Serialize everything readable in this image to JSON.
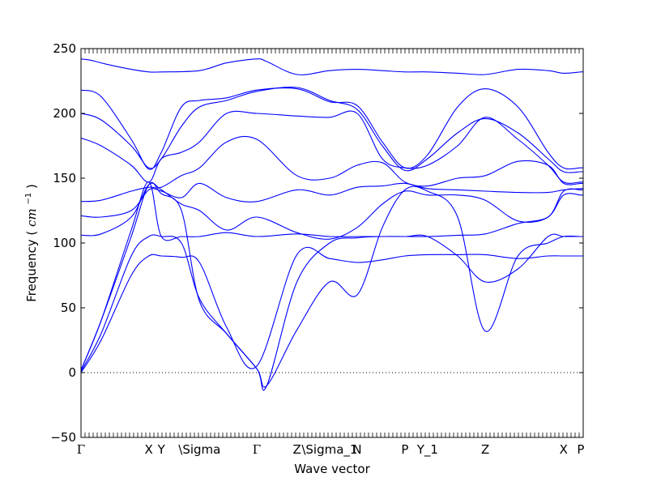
{
  "chart_data": {
    "type": "line",
    "title": "",
    "xlabel": "Wave vector",
    "ylabel": "Frequency",
    "ylabel_unit": "cm",
    "ylabel_unit_exp": "−1",
    "ylim": [
      -50,
      250
    ],
    "yticks": [
      -50,
      0,
      50,
      100,
      150,
      200,
      250
    ],
    "xlim": [
      0,
      1.0
    ],
    "zero_line": true,
    "grid": false,
    "legend": "none",
    "line_color": "#0000ff",
    "high_symmetry_points": [
      {
        "label": "Γ",
        "x": 0.0
      },
      {
        "label": "X",
        "x": 0.135
      },
      {
        "label": "Y",
        "x": 0.16
      },
      {
        "label": "\\Sigma",
        "x": 0.236
      },
      {
        "label": "Γ",
        "x": 0.35
      },
      {
        "label": "Z",
        "x": 0.43
      },
      {
        "label": "\\Sigma_1",
        "x": 0.495
      },
      {
        "label": "N",
        "x": 0.55
      },
      {
        "label": "P",
        "x": 0.645
      },
      {
        "label": "Y_1",
        "x": 0.69
      },
      {
        "label": "Z",
        "x": 0.805
      },
      {
        "label": "X",
        "x": 0.961
      },
      {
        "label": "P",
        "x": 0.995
      }
    ],
    "series": [
      {
        "x": [
          0,
          0.02,
          0.05,
          0.1,
          0.135,
          0.16,
          0.236,
          0.29,
          0.35,
          0.37,
          0.43,
          0.495,
          0.55,
          0.6,
          0.645,
          0.69,
          0.75,
          0.805,
          0.87,
          0.93,
          0.961,
          0.995,
          1.0
        ],
        "values": [
          242,
          241,
          238,
          234,
          232,
          232,
          233,
          239,
          242,
          240,
          230,
          233,
          234,
          233,
          232,
          232,
          231,
          230,
          234,
          233,
          231,
          232,
          232
        ]
      },
      {
        "x": [
          0,
          0.04,
          0.1,
          0.135,
          0.16,
          0.2,
          0.236,
          0.29,
          0.35,
          0.43,
          0.495,
          0.55,
          0.6,
          0.645,
          0.69,
          0.75,
          0.805,
          0.87,
          0.93,
          0.961,
          0.995,
          1.0
        ],
        "values": [
          218,
          213,
          180,
          157,
          170,
          205,
          210,
          212,
          218,
          219,
          209,
          206,
          178,
          158,
          168,
          205,
          219,
          205,
          170,
          158,
          158,
          158
        ]
      },
      {
        "x": [
          0,
          0.04,
          0.1,
          0.135,
          0.16,
          0.2,
          0.236,
          0.29,
          0.35,
          0.43,
          0.495,
          0.55,
          0.6,
          0.645,
          0.69,
          0.75,
          0.805,
          0.87,
          0.93,
          0.961,
          0.995,
          1.0
        ],
        "values": [
          200,
          195,
          175,
          158,
          165,
          190,
          205,
          210,
          217,
          220,
          210,
          203,
          175,
          156,
          165,
          185,
          196,
          185,
          165,
          155,
          155,
          155
        ]
      },
      {
        "x": [
          0,
          0.04,
          0.1,
          0.135,
          0.16,
          0.2,
          0.236,
          0.29,
          0.35,
          0.43,
          0.495,
          0.55,
          0.6,
          0.645,
          0.69,
          0.75,
          0.805,
          0.87,
          0.93,
          0.961,
          0.995,
          1.0
        ],
        "values": [
          181,
          175,
          160,
          147,
          165,
          170,
          178,
          200,
          200,
          198,
          197,
          200,
          165,
          158,
          160,
          175,
          197,
          180,
          160,
          147,
          147,
          147
        ]
      },
      {
        "x": [
          0,
          0.04,
          0.1,
          0.135,
          0.16,
          0.2,
          0.236,
          0.29,
          0.35,
          0.43,
          0.495,
          0.55,
          0.6,
          0.645,
          0.69,
          0.75,
          0.805,
          0.87,
          0.93,
          0.961,
          0.995,
          1.0
        ],
        "values": [
          132,
          133,
          140,
          143,
          143,
          152,
          158,
          178,
          180,
          152,
          150,
          160,
          162,
          147,
          144,
          150,
          152,
          163,
          160,
          146,
          146,
          146
        ]
      },
      {
        "x": [
          0,
          0.04,
          0.1,
          0.135,
          0.16,
          0.2,
          0.236,
          0.29,
          0.35,
          0.43,
          0.495,
          0.55,
          0.6,
          0.645,
          0.69,
          0.75,
          0.805,
          0.87,
          0.93,
          0.961,
          0.995,
          1.0
        ],
        "values": [
          121,
          120,
          125,
          141,
          140,
          135,
          146,
          135,
          132,
          141,
          137,
          143,
          144,
          146,
          142,
          141,
          140,
          139,
          139,
          141,
          142,
          142
        ]
      },
      {
        "x": [
          0,
          0.04,
          0.1,
          0.135,
          0.16,
          0.2,
          0.236,
          0.29,
          0.35,
          0.43,
          0.495,
          0.55,
          0.6,
          0.645,
          0.69,
          0.75,
          0.805,
          0.87,
          0.93,
          0.961,
          0.995,
          1.0
        ],
        "values": [
          106,
          107,
          120,
          145,
          141,
          130,
          125,
          110,
          120,
          108,
          103,
          112,
          130,
          140,
          137,
          137,
          133,
          117,
          120,
          140,
          141,
          141
        ]
      },
      {
        "x": [
          0,
          0.04,
          0.1,
          0.135,
          0.16,
          0.2,
          0.236,
          0.29,
          0.35,
          0.43,
          0.495,
          0.55,
          0.6,
          0.645,
          0.69,
          0.75,
          0.805,
          0.87,
          0.93,
          0.961,
          0.995,
          1.0
        ],
        "values": [
          2,
          40,
          110,
          147,
          105,
          105,
          105,
          108,
          105,
          107,
          105,
          105,
          105,
          105,
          105,
          106,
          107,
          115,
          120,
          137,
          137,
          137
        ]
      },
      {
        "x": [
          0,
          0.04,
          0.1,
          0.135,
          0.16,
          0.2,
          0.236,
          0.29,
          0.35,
          0.37,
          0.43,
          0.495,
          0.55,
          0.6,
          0.645,
          0.69,
          0.75,
          0.805,
          0.87,
          0.93,
          0.961,
          0.995,
          1.0
        ],
        "values": [
          2,
          40,
          105,
          145,
          138,
          125,
          55,
          30,
          3,
          -10,
          70,
          100,
          104,
          105,
          105,
          105,
          90,
          70,
          80,
          105,
          105,
          105,
          105
        ]
      },
      {
        "x": [
          0,
          0.04,
          0.1,
          0.135,
          0.16,
          0.2,
          0.236,
          0.29,
          0.35,
          0.37,
          0.43,
          0.495,
          0.55,
          0.6,
          0.645,
          0.69,
          0.75,
          0.805,
          0.87,
          0.93,
          0.961,
          0.995,
          1.0
        ],
        "values": [
          1,
          30,
          90,
          105,
          105,
          100,
          57,
          30,
          3,
          -10,
          33,
          70,
          60,
          112,
          141,
          140,
          120,
          32,
          90,
          100,
          105,
          105,
          105
        ]
      },
      {
        "x": [
          0,
          0.04,
          0.1,
          0.135,
          0.16,
          0.2,
          0.236,
          0.29,
          0.35,
          0.43,
          0.495,
          0.55,
          0.6,
          0.645,
          0.69,
          0.75,
          0.805,
          0.87,
          0.93,
          0.961,
          0.995,
          1.0
        ],
        "values": [
          0,
          25,
          75,
          90,
          90,
          89,
          85,
          35,
          5,
          91,
          88,
          85,
          87,
          90,
          91,
          91,
          91,
          88,
          90,
          90,
          90,
          90
        ]
      }
    ]
  }
}
